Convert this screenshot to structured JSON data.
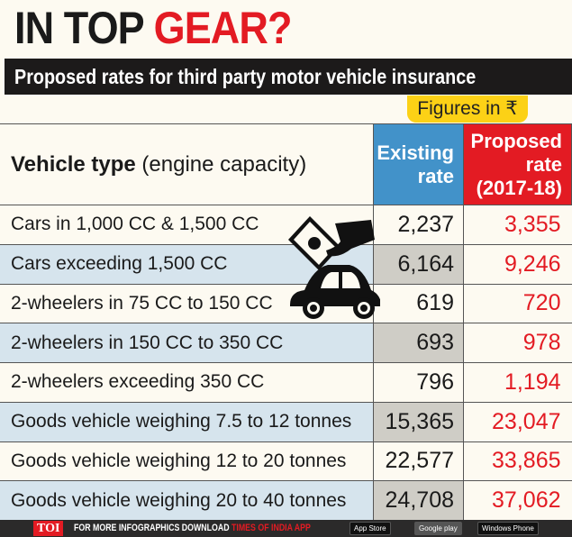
{
  "title": {
    "part1": "IN TOP ",
    "part2": "GEAR?"
  },
  "subtitle": "Proposed rates for third party motor vehicle insurance",
  "unit_note": "Figures in ₹",
  "colors": {
    "existing": "#4292c9",
    "proposed": "#e31b23",
    "accent": "#fcd116"
  },
  "chart_data": {
    "type": "table",
    "columns": {
      "vehicle_bold": "Vehicle type",
      "vehicle_rest": " (engine capacity)",
      "existing": "Existing rate",
      "proposed": "Proposed rate (2017-18)"
    },
    "rows": [
      {
        "type": "Cars in 1,000 CC & 1,500 CC",
        "existing": "2,237",
        "proposed": "3,355"
      },
      {
        "type": "Cars exceeding 1,500 CC",
        "existing": "6,164",
        "proposed": "9,246"
      },
      {
        "type": "2-wheelers in 75 CC to 150 CC",
        "existing": "619",
        "proposed": "720"
      },
      {
        "type": "2-wheelers in 150 CC to 350 CC",
        "existing": "693",
        "proposed": "978"
      },
      {
        "type": "2-wheelers exceeding 350 CC",
        "existing": "796",
        "proposed": "1,194"
      },
      {
        "type": "Goods vehicle weighing 7.5 to 12 tonnes",
        "existing": "15,365",
        "proposed": "23,047"
      },
      {
        "type": "Goods vehicle weighing 12 to 20 tonnes",
        "existing": "22,577",
        "proposed": "33,865"
      },
      {
        "type": "Goods vehicle weighing 20 to 40 tonnes",
        "existing": "24,708",
        "proposed": "37,062"
      }
    ]
  },
  "icons": {
    "illustration": "money-hand-car-icon"
  },
  "footer": {
    "logo": "TOI",
    "text": "FOR MORE INFOGRAPHICS DOWNLOAD ",
    "app": "TIMES OF INDIA APP",
    "app_store": "App Store",
    "google_play": "Google play",
    "windows": "Windows Phone"
  }
}
